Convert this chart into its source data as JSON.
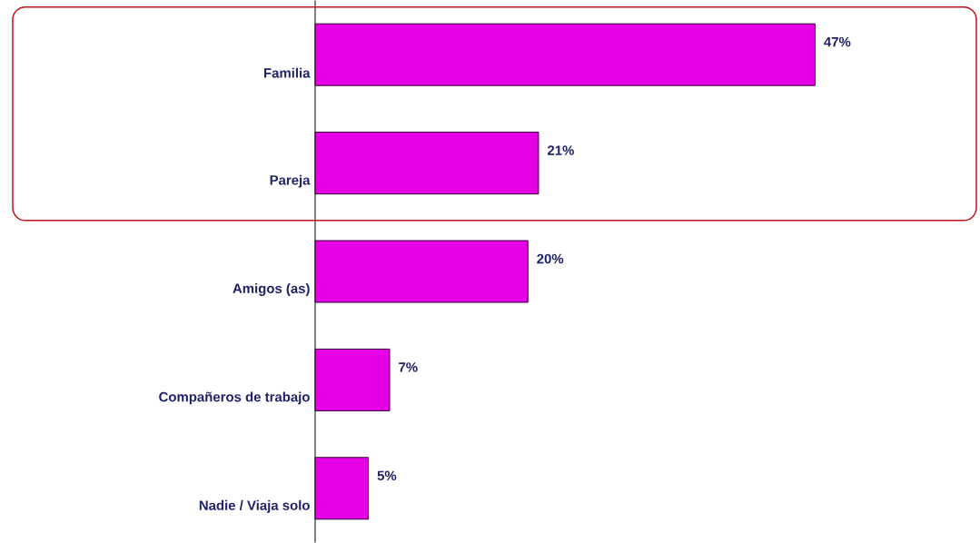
{
  "chart_data": {
    "type": "bar",
    "orientation": "horizontal",
    "categories": [
      "Familia",
      "Pareja",
      "Amigos (as)",
      "Compañeros de trabajo",
      "Nadie / Viaja solo"
    ],
    "values": [
      47,
      21,
      20,
      7,
      5
    ],
    "value_labels": [
      "47%",
      "21%",
      "20%",
      "7%",
      "5%"
    ],
    "color": "#e600e6"
  }
}
